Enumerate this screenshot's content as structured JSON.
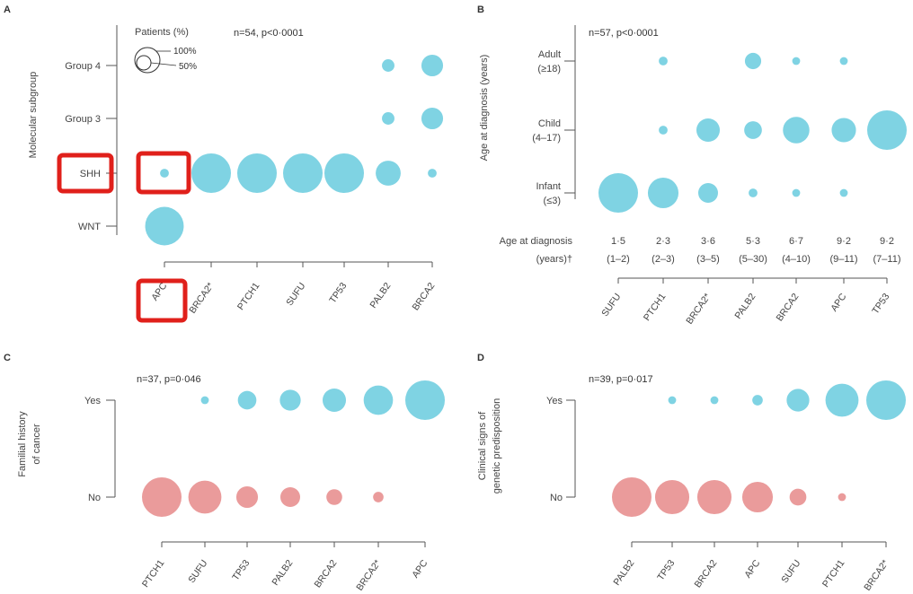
{
  "panels": [
    {
      "letter": "A",
      "stat": "n=54, p<0·0001",
      "ylabel": "Molecular subgroup",
      "legend": {
        "title": "Patients (%)",
        "big": "100%",
        "small": "50%"
      }
    },
    {
      "letter": "B",
      "stat": "n=57, p<0·0001",
      "ylabel": "Age at diagnosis (years)",
      "header_label_1": "Age at diagnosis",
      "header_label_2": "(years)†",
      "medians": [
        "1·5",
        "2·3",
        "3·6",
        "5·3",
        "6·7",
        "9·2",
        "9·2"
      ],
      "ranges": [
        "(1–2)",
        "(2–3)",
        "(3–5)",
        "(5–30)",
        "(4–10)",
        "(9–11)",
        "(7–11)"
      ]
    },
    {
      "letter": "C",
      "stat": "n=37, p=0·046",
      "ylabel_1": "Familial history",
      "ylabel_2": "of cancer"
    },
    {
      "letter": "D",
      "stat": "n=39, p=0·017",
      "ylabel_1": "Clinical signs of",
      "ylabel_2": "genetic predisposition"
    }
  ],
  "colors": {
    "blue": "#7fd3e3",
    "red": "#ea9b9b",
    "highlight": "#e0201b",
    "axis": "#555555"
  },
  "chart_data": [
    {
      "type": "scatter",
      "title": "",
      "x": [
        "APC",
        "BRCA2*",
        "PTCH1",
        "SUFU",
        "TP53",
        "PALB2",
        "BRCA2"
      ],
      "y": [
        "Group 4",
        "Group 3",
        "SHH",
        "WNT"
      ],
      "size_unit": "Patients (%)",
      "series": [
        {
          "values": [
            {
              "x": "APC",
              "y": "SHH",
              "pct": 5
            },
            {
              "x": "APC",
              "y": "WNT",
              "pct": 95
            },
            {
              "x": "BRCA2*",
              "y": "SHH",
              "pct": 100
            },
            {
              "x": "PTCH1",
              "y": "SHH",
              "pct": 100
            },
            {
              "x": "SUFU",
              "y": "SHH",
              "pct": 100
            },
            {
              "x": "TP53",
              "y": "SHH",
              "pct": 100
            },
            {
              "x": "PALB2",
              "y": "Group 4",
              "pct": 10
            },
            {
              "x": "PALB2",
              "y": "Group 3",
              "pct": 10
            },
            {
              "x": "PALB2",
              "y": "SHH",
              "pct": 40
            },
            {
              "x": "BRCA2",
              "y": "Group 4",
              "pct": 30
            },
            {
              "x": "BRCA2",
              "y": "Group 3",
              "pct": 30
            },
            {
              "x": "BRCA2",
              "y": "SHH",
              "pct": 5
            }
          ]
        }
      ],
      "highlighted": [
        "SHH",
        "APC",
        "APC:SHH"
      ]
    },
    {
      "type": "scatter",
      "title": "",
      "x": [
        "SUFU",
        "PTCH1",
        "BRCA2*",
        "PALB2",
        "BRCA2",
        "APC",
        "TP53"
      ],
      "y": [
        "Adult (≥18)",
        "Child (4–17)",
        "Infant (≤3)"
      ],
      "y_line1": [
        "Adult",
        "Child",
        "Infant"
      ],
      "y_line2": [
        "(≥18)",
        "(4–17)",
        "(≤3)"
      ],
      "size_unit": "Patients (%)",
      "series": [
        {
          "values": [
            {
              "x": "SUFU",
              "y": "Infant (≤3)",
              "pct": 100
            },
            {
              "x": "PTCH1",
              "y": "Adult (≥18)",
              "pct": 5
            },
            {
              "x": "PTCH1",
              "y": "Child (4–17)",
              "pct": 5
            },
            {
              "x": "PTCH1",
              "y": "Infant (≤3)",
              "pct": 60
            },
            {
              "x": "BRCA2*",
              "y": "Child (4–17)",
              "pct": 35
            },
            {
              "x": "BRCA2*",
              "y": "Infant (≤3)",
              "pct": 25
            },
            {
              "x": "PALB2",
              "y": "Adult (≥18)",
              "pct": 17
            },
            {
              "x": "PALB2",
              "y": "Child (4–17)",
              "pct": 20
            },
            {
              "x": "PALB2",
              "y": "Infant (≤3)",
              "pct": 5
            },
            {
              "x": "BRCA2",
              "y": "Adult (≥18)",
              "pct": 4
            },
            {
              "x": "BRCA2",
              "y": "Child (4–17)",
              "pct": 45
            },
            {
              "x": "BRCA2",
              "y": "Infant (≤3)",
              "pct": 4
            },
            {
              "x": "APC",
              "y": "Adult (≥18)",
              "pct": 4
            },
            {
              "x": "APC",
              "y": "Child (4–17)",
              "pct": 38
            },
            {
              "x": "APC",
              "y": "Infant (≤3)",
              "pct": 4
            },
            {
              "x": "TP53",
              "y": "Child (4–17)",
              "pct": 100
            }
          ]
        }
      ]
    },
    {
      "type": "scatter",
      "title": "",
      "x": [
        "PTCH1",
        "SUFU",
        "TP53",
        "PALB2",
        "BRCA2",
        "BRCA2*",
        "APC"
      ],
      "y": [
        "Yes",
        "No"
      ],
      "size_unit": "Patients (%)",
      "series": [
        {
          "name": "Yes",
          "color": "#7fd3e3",
          "values": [
            {
              "x": "SUFU",
              "pct": 4
            },
            {
              "x": "TP53",
              "pct": 22
            },
            {
              "x": "PALB2",
              "pct": 28
            },
            {
              "x": "BRCA2",
              "pct": 35
            },
            {
              "x": "BRCA2*",
              "pct": 55
            },
            {
              "x": "APC",
              "pct": 100
            }
          ]
        },
        {
          "name": "No",
          "color": "#ea9b9b",
          "values": [
            {
              "x": "PTCH1",
              "pct": 100
            },
            {
              "x": "SUFU",
              "pct": 70
            },
            {
              "x": "TP53",
              "pct": 30
            },
            {
              "x": "PALB2",
              "pct": 25
            },
            {
              "x": "BRCA2",
              "pct": 16
            },
            {
              "x": "BRCA2*",
              "pct": 7
            }
          ]
        }
      ]
    },
    {
      "type": "scatter",
      "title": "",
      "x": [
        "PALB2",
        "TP53",
        "BRCA2",
        "APC",
        "SUFU",
        "PTCH1",
        "BRCA2*"
      ],
      "y": [
        "Yes",
        "No"
      ],
      "size_unit": "Patients (%)",
      "series": [
        {
          "name": "Yes",
          "color": "#7fd3e3",
          "values": [
            {
              "x": "TP53",
              "pct": 4
            },
            {
              "x": "BRCA2",
              "pct": 4
            },
            {
              "x": "APC",
              "pct": 7
            },
            {
              "x": "SUFU",
              "pct": 33
            },
            {
              "x": "PTCH1",
              "pct": 70
            },
            {
              "x": "BRCA2*",
              "pct": 100
            }
          ]
        },
        {
          "name": "No",
          "color": "#ea9b9b",
          "values": [
            {
              "x": "PALB2",
              "pct": 100
            },
            {
              "x": "TP53",
              "pct": 75
            },
            {
              "x": "BRCA2",
              "pct": 75
            },
            {
              "x": "APC",
              "pct": 60
            },
            {
              "x": "SUFU",
              "pct": 18
            },
            {
              "x": "PTCH1",
              "pct": 4
            }
          ]
        }
      ]
    }
  ]
}
